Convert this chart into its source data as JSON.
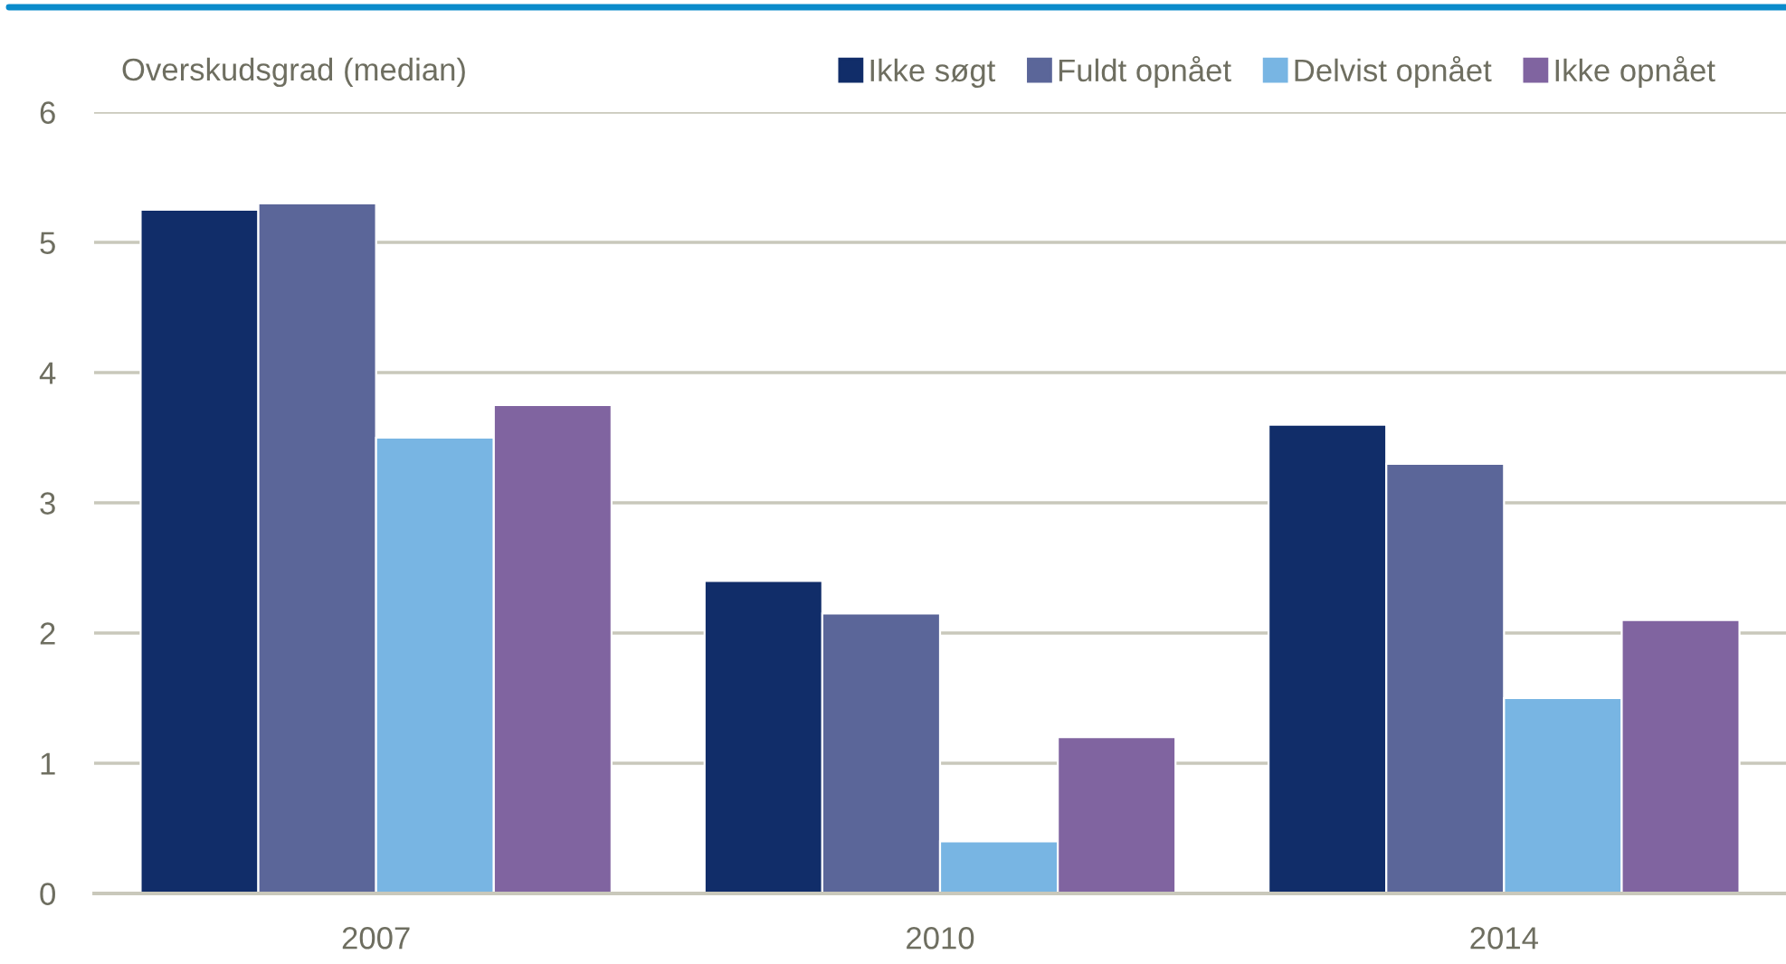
{
  "chart_data": {
    "type": "bar",
    "ylabel": "Overskudsgrad (median)",
    "categories": [
      "2007",
      "2010",
      "2014"
    ],
    "series": [
      {
        "name": "Ikke søgt",
        "color": "#112d69",
        "values": [
          5.25,
          2.4,
          3.6
        ]
      },
      {
        "name": "Fuldt opnået",
        "color": "#5b6699",
        "values": [
          5.3,
          2.15,
          3.3
        ]
      },
      {
        "name": "Delvist opnået",
        "color": "#78b5e3",
        "values": [
          3.5,
          0.4,
          1.5
        ]
      },
      {
        "name": "Ikke opnået",
        "color": "#8064a0",
        "values": [
          3.75,
          1.2,
          2.1
        ]
      }
    ],
    "ylim": [
      0,
      6
    ],
    "yticks": [
      0,
      1,
      2,
      3,
      4,
      5,
      6
    ],
    "grid": "y",
    "legend": "top right"
  }
}
